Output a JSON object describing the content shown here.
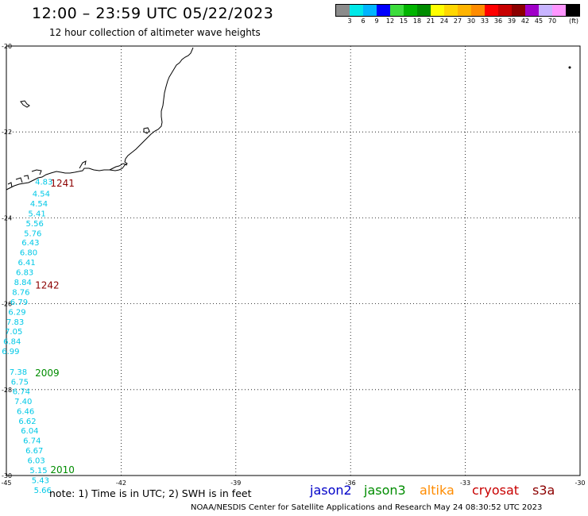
{
  "header": {
    "title": "12:00 – 23:59 UTC 05/22/2023",
    "subtitle": "12 hour collection of altimeter wave heights"
  },
  "legend": {
    "colors": [
      "#8c8c8c",
      "#00e8e8",
      "#00b4ff",
      "#0000ff",
      "#3cdc3c",
      "#00b400",
      "#008c00",
      "#ffff00",
      "#ffd700",
      "#ffb400",
      "#ff8c00",
      "#ff0000",
      "#c80000",
      "#8c0000",
      "#a000c8",
      "#c8b4ff",
      "#ff96ff",
      "#000000"
    ],
    "labels": [
      "3",
      "6",
      "9",
      "12",
      "15",
      "18",
      "21",
      "24",
      "27",
      "30",
      "33",
      "36",
      "39",
      "42",
      "45",
      "70"
    ],
    "unit": "(ft)"
  },
  "axes": {
    "lon_ticks": [
      "-45",
      "-42",
      "-39",
      "-36",
      "-33",
      "-30"
    ],
    "lat_ticks": [
      "-20",
      "-22",
      "-24",
      "-26",
      "-28",
      "-30"
    ]
  },
  "tracks": [
    {
      "label": "1241",
      "label_color": "#8c0000",
      "points": [
        {
          "lat": -23.15,
          "lon": -44.25,
          "swh": "4.83"
        },
        {
          "lat": -23.43,
          "lon": -44.32,
          "swh": "4.54"
        },
        {
          "lat": -23.66,
          "lon": -44.38,
          "swh": "4.54"
        },
        {
          "lat": -23.89,
          "lon": -44.43,
          "swh": "5.41"
        },
        {
          "lat": -24.12,
          "lon": -44.49,
          "swh": "5.56"
        },
        {
          "lat": -24.35,
          "lon": -44.54,
          "swh": "5.76"
        },
        {
          "lat": -24.57,
          "lon": -44.6,
          "swh": "6.43"
        },
        {
          "lat": -24.8,
          "lon": -44.65,
          "swh": "6.80"
        },
        {
          "lat": -25.03,
          "lon": -44.7,
          "swh": "6.41"
        },
        {
          "lat": -25.26,
          "lon": -44.75,
          "swh": "6.83"
        },
        {
          "lat": -25.49,
          "lon": -44.8,
          "swh": "8.84"
        },
        {
          "lat": -25.72,
          "lon": -44.85,
          "swh": "8.76"
        },
        {
          "lat": -25.95,
          "lon": -44.9,
          "swh": "6.79"
        },
        {
          "lat": -26.18,
          "lon": -44.95,
          "swh": "6.29"
        },
        {
          "lat": -26.41,
          "lon": -45.0,
          "swh": "7.83"
        },
        {
          "lat": -26.64,
          "lon": -45.04,
          "swh": "7.05"
        },
        {
          "lat": -26.87,
          "lon": -45.08,
          "swh": "6.84"
        },
        {
          "lat": -27.1,
          "lon": -45.12,
          "swh": "6.99"
        }
      ]
    },
    {
      "label": "1242",
      "label_color": "#8c0000",
      "points": []
    },
    {
      "label": "2009",
      "label_color": "#008c00",
      "points": [
        {
          "lat": -27.58,
          "lon": -44.92,
          "swh": "7.38"
        },
        {
          "lat": -27.81,
          "lon": -44.88,
          "swh": "6.75"
        },
        {
          "lat": -28.03,
          "lon": -44.84,
          "swh": "6.74"
        },
        {
          "lat": -28.26,
          "lon": -44.79,
          "swh": "7.40"
        },
        {
          "lat": -28.49,
          "lon": -44.73,
          "swh": "6.46"
        },
        {
          "lat": -28.72,
          "lon": -44.68,
          "swh": "6.62"
        },
        {
          "lat": -28.95,
          "lon": -44.62,
          "swh": "6.04"
        },
        {
          "lat": -29.18,
          "lon": -44.56,
          "swh": "6.74"
        },
        {
          "lat": -29.41,
          "lon": -44.5,
          "swh": "6.67"
        },
        {
          "lat": -29.64,
          "lon": -44.45,
          "swh": "6.03"
        },
        {
          "lat": -29.87,
          "lon": -44.39,
          "swh": "5.15"
        },
        {
          "lat": -30.1,
          "lon": -44.34,
          "swh": "5.43"
        },
        {
          "lat": -30.33,
          "lon": -44.28,
          "swh": "5.66"
        }
      ]
    },
    {
      "label": "2010",
      "label_color": "#008c00",
      "points": []
    }
  ],
  "notes": {
    "note": "note:  1) Time is in UTC;  2) SWH is in feet",
    "footer": "NOAA/NESDIS Center for Satellite Applications and Research     May 24 08:30:52 UTC 2023"
  },
  "satellites": [
    {
      "name": "jason2",
      "color": "#0000c8"
    },
    {
      "name": "jason3",
      "color": "#008c00"
    },
    {
      "name": "altika",
      "color": "#ff8c00"
    },
    {
      "name": "cryosat",
      "color": "#c80000"
    },
    {
      "name": "s3a",
      "color": "#8c0000"
    }
  ]
}
